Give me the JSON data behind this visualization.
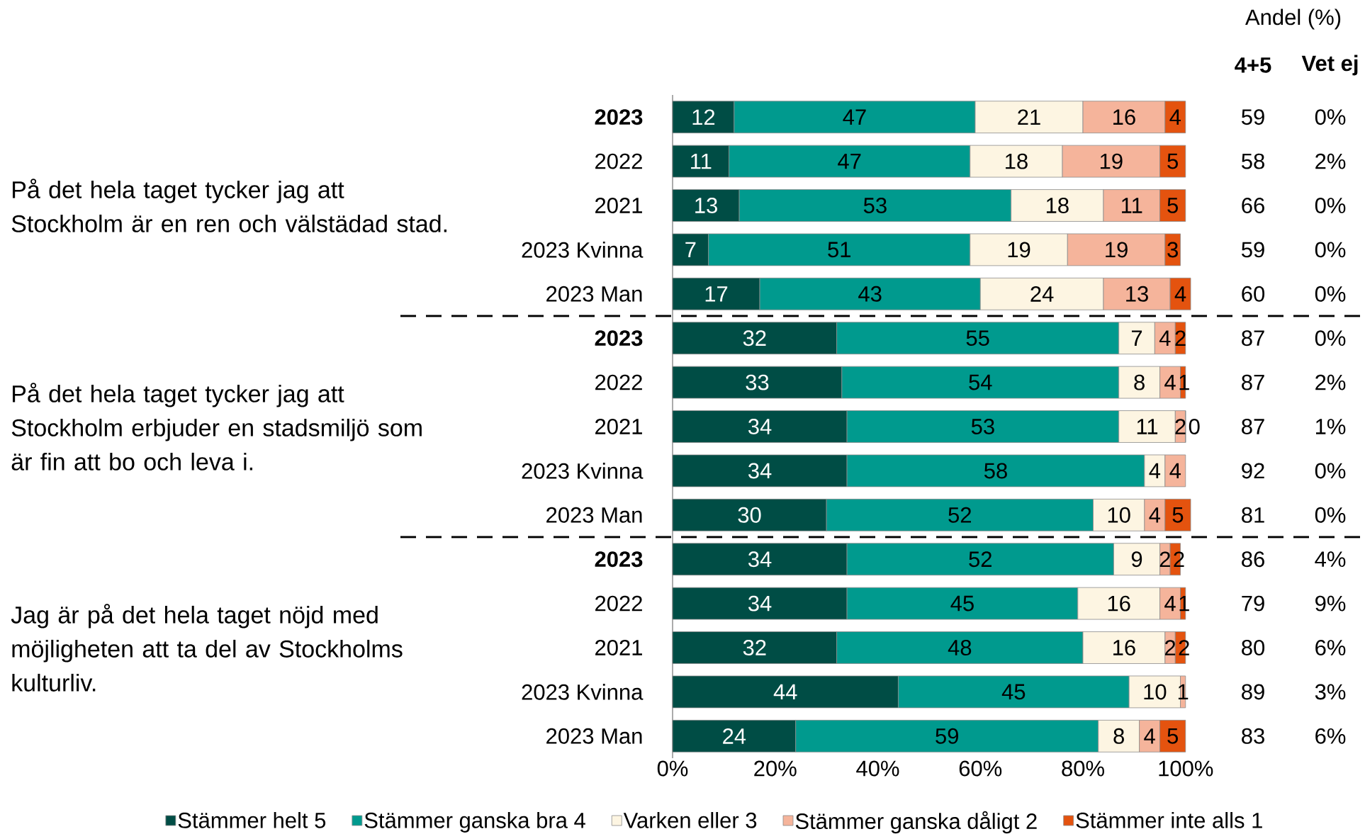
{
  "chart_data": {
    "type": "bar",
    "orientation": "horizontal",
    "stacked": true,
    "data_labels": true,
    "legend": "bottom",
    "categories": [
      "**2023**",
      "2022",
      "2021",
      "2023 Kvinna",
      "2023 Man",
      "**2023**",
      "2022",
      "2021",
      "2023 Kvinna",
      "2023 Man",
      "**2023**",
      "2022",
      "2021",
      "2023 Kvinna",
      "2023 Man"
    ],
    "xlim": [
      0,
      101
    ],
    "xticks": [
      {
        "value": 0,
        "label": "0%"
      },
      {
        "value": 20,
        "label": "20%"
      },
      {
        "value": 40,
        "label": "40%"
      },
      {
        "value": 60,
        "label": "60%"
      },
      {
        "value": 80,
        "label": "80%"
      },
      {
        "value": 100,
        "label": "100%"
      }
    ],
    "series": [
      {
        "name": "Stämmer helt 5",
        "color": "#004d45",
        "values": [
          12,
          11,
          13,
          7,
          17,
          32,
          33,
          34,
          34,
          30,
          34,
          34,
          32,
          44,
          24
        ]
      },
      {
        "name": "Stämmer ganska bra 4",
        "color": "#009a8e",
        "values": [
          47,
          47,
          53,
          51,
          43,
          55,
          54,
          53,
          58,
          52,
          52,
          45,
          48,
          45,
          59
        ]
      },
      {
        "name": "Varken eller 3",
        "color": "#fdf5e2",
        "values": [
          21,
          18,
          18,
          19,
          24,
          7,
          8,
          11,
          4,
          10,
          9,
          16,
          16,
          10,
          8
        ]
      },
      {
        "name": "Stämmer ganska dåligt 2",
        "color": "#f5b49b",
        "values": [
          16,
          19,
          11,
          19,
          13,
          4,
          4,
          2,
          4,
          4,
          2,
          4,
          2,
          1,
          4
        ]
      },
      {
        "name": "Stämmer inte alls 1",
        "color": "#e4530f",
        "values": [
          4,
          5,
          5,
          3,
          4,
          2,
          1,
          0,
          null,
          5,
          2,
          1,
          2,
          null,
          5
        ]
      }
    ],
    "annotations": [
      "På det hela taget tycker jag att Stockholm är en ren och välstädad stad.",
      "På det hela taget tycker jag att Stockholm erbjuder en stadsmiljö som är fin att bo och leva i.",
      "Jag är på det hela taget nöjd med möjligheten att ta del av Stockholms kulturliv.",
      "Andel (%)",
      "4+5",
      "Vet ej",
      "59",
      "58",
      "66",
      "59",
      "60",
      "87",
      "87",
      "87",
      "92",
      "81",
      "86",
      "79",
      "80",
      "89",
      "83",
      "0%",
      "2%",
      "0%",
      "0%",
      "0%",
      "0%",
      "2%",
      "1%",
      "0%",
      "0%",
      "4%",
      "9%",
      "6%",
      "3%",
      "6%"
    ]
  }
}
